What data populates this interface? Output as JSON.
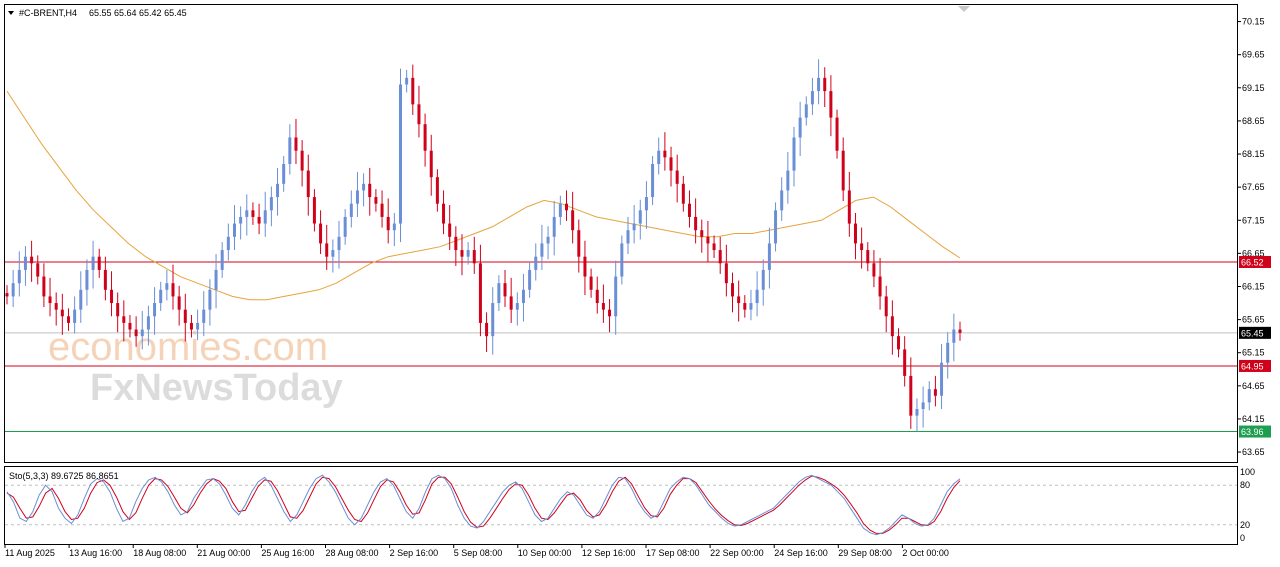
{
  "header": {
    "symbol": "#C-BRENT,H4",
    "ohlc": "65.55 65.64 65.42 65.45"
  },
  "watermark": {
    "line1": "economies.com",
    "line2": "FxNewsToday"
  },
  "levels": [
    {
      "label": "66.52",
      "value": 66.52,
      "color": "#d0021b"
    },
    {
      "label": "65.45",
      "value": 65.45,
      "color": "#000000"
    },
    {
      "label": "64.95",
      "value": 64.95,
      "color": "#d0021b"
    },
    {
      "label": "63.96",
      "value": 63.96,
      "color": "#1e9e4f"
    }
  ],
  "stoch": {
    "label": "Sto(5,3,3) 89.6725 86.8651",
    "ticks": [
      "100",
      "80",
      "20",
      "0"
    ],
    "tick_values": [
      100,
      80,
      20,
      0
    ]
  },
  "colors": {
    "up": "#6a8fd6",
    "down": "#d0021b",
    "ma": "#e6a43c",
    "main": "#d0021b",
    "signal": "#6a8fd6"
  },
  "chart_data": {
    "type": "candlestick",
    "price_axis": {
      "ticks": [
        "70.15",
        "69.65",
        "69.15",
        "68.65",
        "68.15",
        "67.65",
        "67.15",
        "66.65",
        "66.15",
        "65.65",
        "65.15",
        "64.65",
        "64.15",
        "63.65"
      ],
      "values": [
        70.15,
        69.65,
        69.15,
        68.65,
        68.15,
        67.65,
        67.15,
        66.65,
        66.15,
        65.65,
        65.15,
        64.65,
        64.15,
        63.65
      ],
      "ylim": [
        63.5,
        70.4
      ]
    },
    "time_axis": {
      "labels": [
        "11 Aug 2025",
        "13 Aug 16:00",
        "18 Aug 08:00",
        "21 Aug 00:00",
        "25 Aug 16:00",
        "28 Aug 08:00",
        "2 Sep 16:00",
        "5 Sep 08:00",
        "10 Sep 00:00",
        "12 Sep 16:00",
        "17 Sep 08:00",
        "22 Sep 00:00",
        "24 Sep 16:00",
        "29 Sep 08:00",
        "2 Oct 00:00"
      ]
    },
    "closes": [
      66.0,
      66.2,
      66.4,
      66.6,
      66.5,
      66.3,
      66.0,
      65.9,
      65.8,
      65.7,
      65.6,
      65.8,
      66.1,
      66.4,
      66.6,
      66.4,
      66.1,
      65.9,
      65.7,
      65.6,
      65.5,
      65.4,
      65.5,
      65.7,
      65.9,
      66.1,
      66.2,
      66.0,
      65.8,
      65.6,
      65.5,
      65.6,
      65.8,
      66.1,
      66.4,
      66.7,
      66.9,
      67.1,
      67.2,
      67.3,
      67.2,
      67.1,
      67.3,
      67.5,
      67.7,
      68.0,
      68.4,
      68.2,
      67.9,
      67.5,
      67.1,
      66.8,
      66.6,
      66.7,
      66.9,
      67.2,
      67.4,
      67.6,
      67.7,
      67.5,
      67.4,
      67.2,
      67.0,
      67.1,
      69.2,
      69.3,
      68.9,
      68.6,
      68.2,
      67.8,
      67.4,
      67.1,
      66.9,
      66.7,
      66.6,
      66.7,
      66.5,
      65.6,
      65.4,
      65.9,
      66.2,
      66.0,
      65.8,
      65.9,
      66.1,
      66.4,
      66.6,
      66.8,
      66.9,
      67.2,
      67.4,
      67.3,
      67.0,
      66.6,
      66.3,
      66.1,
      65.9,
      65.8,
      65.7,
      66.3,
      66.8,
      67.0,
      67.1,
      67.3,
      67.5,
      68.0,
      68.2,
      68.1,
      67.9,
      67.7,
      67.4,
      67.2,
      67.0,
      66.9,
      66.8,
      66.7,
      66.5,
      66.2,
      66.0,
      65.9,
      65.8,
      65.9,
      66.1,
      66.4,
      66.8,
      67.3,
      67.6,
      67.9,
      68.4,
      68.7,
      68.9,
      69.1,
      69.3,
      69.1,
      68.7,
      68.2,
      67.6,
      67.1,
      66.8,
      66.7,
      66.5,
      66.3,
      66.0,
      65.7,
      65.4,
      65.2,
      64.8,
      64.2,
      64.3,
      64.4,
      64.6,
      64.5,
      65.0,
      65.3,
      65.5,
      65.45
    ],
    "ma_values": [
      69.1,
      68.7,
      68.3,
      67.95,
      67.6,
      67.3,
      67.05,
      66.8,
      66.6,
      66.45,
      66.3,
      66.2,
      66.1,
      66.0,
      65.95,
      65.95,
      66.0,
      66.05,
      66.1,
      66.2,
      66.35,
      66.5,
      66.6,
      66.65,
      66.7,
      66.75,
      66.85,
      66.95,
      67.05,
      67.2,
      67.35,
      67.45,
      67.4,
      67.3,
      67.2,
      67.15,
      67.1,
      67.05,
      67.0,
      66.95,
      66.9,
      66.9,
      66.95,
      66.95,
      67.0,
      67.05,
      67.1,
      67.15,
      67.3,
      67.45,
      67.5,
      67.35,
      67.15,
      66.95,
      66.75,
      66.58
    ],
    "stoch_k": [
      70,
      55,
      30,
      25,
      40,
      65,
      80,
      70,
      45,
      30,
      22,
      35,
      60,
      82,
      90,
      85,
      70,
      45,
      25,
      30,
      55,
      75,
      88,
      92,
      85,
      70,
      50,
      35,
      40,
      60,
      75,
      88,
      90,
      82,
      65,
      45,
      35,
      50,
      70,
      85,
      92,
      80,
      60,
      40,
      25,
      35,
      55,
      75,
      90,
      95,
      85,
      70,
      50,
      30,
      20,
      30,
      50,
      70,
      85,
      90,
      80,
      60,
      40,
      30,
      45,
      70,
      90,
      95,
      90,
      75,
      50,
      30,
      18,
      15,
      25,
      40,
      55,
      70,
      80,
      85,
      75,
      55,
      35,
      25,
      30,
      45,
      60,
      70,
      65,
      50,
      35,
      30,
      40,
      60,
      80,
      92,
      90,
      75,
      55,
      40,
      30,
      35,
      55,
      75,
      85,
      92,
      90,
      80,
      65,
      50,
      40,
      30,
      22,
      18,
      20,
      25,
      30,
      35,
      40,
      45,
      55,
      65,
      75,
      85,
      92,
      95,
      90,
      85,
      80,
      70,
      60,
      45,
      30,
      15,
      8,
      5,
      8,
      15,
      25,
      35,
      30,
      22,
      18,
      20,
      30,
      50,
      70,
      82,
      89.67
    ],
    "stoch_d": [
      68,
      62,
      45,
      30,
      32,
      48,
      68,
      75,
      60,
      40,
      28,
      30,
      45,
      68,
      84,
      88,
      80,
      62,
      40,
      28,
      38,
      60,
      80,
      90,
      88,
      78,
      62,
      45,
      38,
      50,
      68,
      82,
      90,
      86,
      75,
      55,
      40,
      42,
      60,
      78,
      88,
      86,
      72,
      52,
      32,
      30,
      42,
      62,
      82,
      92,
      90,
      78,
      60,
      42,
      28,
      25,
      38,
      58,
      78,
      88,
      85,
      70,
      50,
      36,
      38,
      58,
      82,
      92,
      92,
      82,
      62,
      40,
      24,
      16,
      18,
      30,
      45,
      60,
      74,
      82,
      80,
      65,
      45,
      30,
      28,
      38,
      52,
      65,
      68,
      58,
      42,
      32,
      35,
      50,
      70,
      86,
      92,
      82,
      64,
      46,
      34,
      32,
      45,
      66,
      80,
      90,
      90,
      84,
      70,
      56,
      44,
      34,
      26,
      20,
      19,
      22,
      27,
      32,
      37,
      42,
      50,
      60,
      70,
      80,
      88,
      94,
      92,
      88,
      82,
      75,
      65,
      52,
      38,
      22,
      12,
      7,
      7,
      12,
      20,
      30,
      30,
      25,
      20,
      19,
      25,
      40,
      60,
      76,
      86.87
    ]
  }
}
